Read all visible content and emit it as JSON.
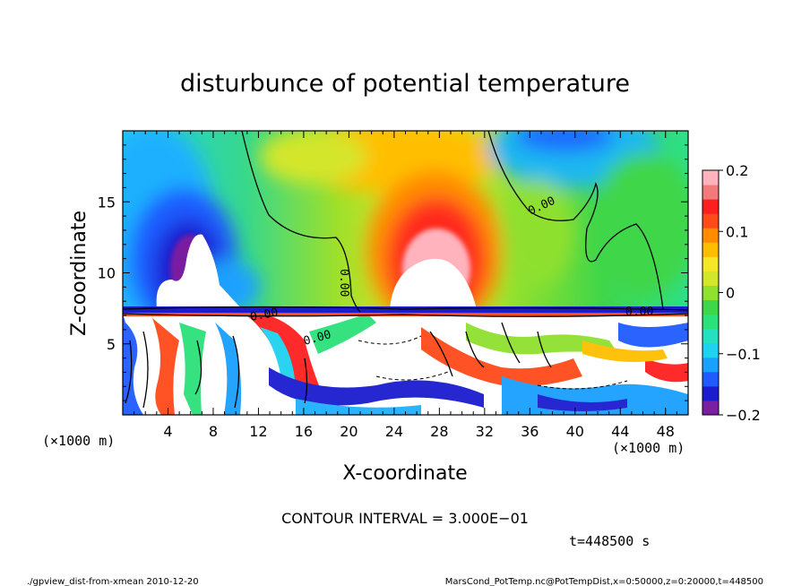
{
  "chart_data": {
    "type": "heatmap",
    "title": "disturbunce of potential temperature",
    "xlabel": "X-coordinate",
    "ylabel": "Z-coordinate",
    "x_unit_left": "(×1000 m)",
    "x_unit_right": "(×1000 m)",
    "xlim": [
      0,
      50
    ],
    "ylim": [
      0,
      20
    ],
    "xticks": [
      "4",
      "8",
      "12",
      "16",
      "20",
      "24",
      "28",
      "32",
      "36",
      "40",
      "44",
      "48"
    ],
    "yticks": [
      "5",
      "10",
      "15"
    ],
    "colorbar": {
      "min": -0.2,
      "max": 0.2,
      "ticks": [
        "0.2",
        "0.1",
        "0",
        "−0.1",
        "−0.2"
      ],
      "colors": [
        "#7a1fa0",
        "#1c1ccf",
        "#1f5bff",
        "#1aa0ff",
        "#1fd2f0",
        "#25e0c0",
        "#2ce07a",
        "#3fd64a",
        "#8fe02f",
        "#d4e62a",
        "#f5e62a",
        "#ffbf00",
        "#ff8c00",
        "#ff4a1a",
        "#ff1f1f",
        "#f27a7a",
        "#ffb3bd"
      ]
    },
    "contour_labels": [
      "0.00",
      "0.00",
      "0.00",
      "0.00",
      "0.00"
    ],
    "features": [
      {
        "name": "cold anomaly",
        "x": 6.5,
        "z": 12.5,
        "value": -0.2
      },
      {
        "name": "warm anomaly",
        "x": 27.5,
        "z": 11.5,
        "value": 0.2
      },
      {
        "name": "cold anomaly upper right",
        "x": 39,
        "z": 19.5,
        "value": -0.15
      }
    ]
  },
  "annotations": {
    "contour_interval": "CONTOUR INTERVAL = 3.000E−01",
    "time": "t=448500 s"
  },
  "footer": {
    "left": "./gpview_dist-from-xmean   2010-12-20",
    "right": "MarsCond_PotTemp.nc@PotTempDist,x=0:50000,z=0:20000,t=448500"
  }
}
